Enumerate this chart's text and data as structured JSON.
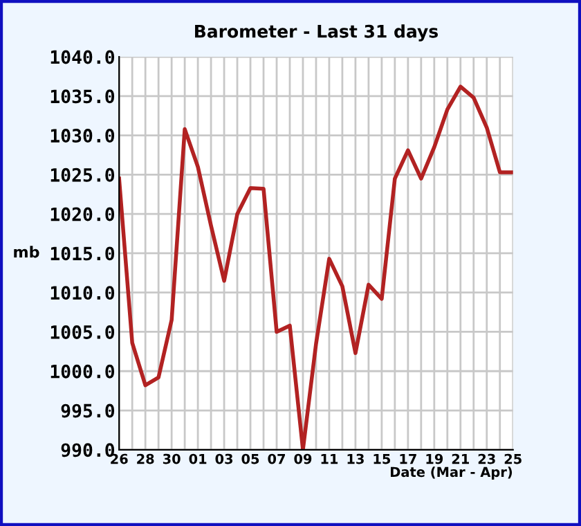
{
  "chart_data": {
    "type": "line",
    "title": "Barometer - Last 31 days",
    "xlabel": "Date (Mar - Apr)",
    "ylabel": "mb",
    "categories": [
      "26",
      null,
      "28",
      null,
      "30",
      null,
      "01",
      null,
      "03",
      null,
      "05",
      null,
      "07",
      null,
      "09",
      null,
      "11",
      null,
      "13",
      null,
      "15",
      null,
      "17",
      null,
      "19",
      null,
      "21",
      null,
      "23",
      null,
      "25"
    ],
    "series": [
      {
        "color": "#b22222",
        "values": [
          1024.5,
          1003.6,
          998.2,
          999.2,
          1006.5,
          1030.8,
          1026,
          1018.5,
          1011.5,
          1020,
          1023.3,
          1023.2,
          1005,
          1005.8,
          990,
          1003.5,
          1014.3,
          1010.8,
          1002.3,
          1011,
          1009.2,
          1024.5,
          1028.1,
          1024.5,
          1028.5,
          1033.3,
          1036.2,
          1034.8,
          1031,
          1025.3,
          1025.3
        ]
      }
    ],
    "ylim": [
      990,
      1040
    ],
    "yticks": [
      {
        "value": 990,
        "label": "990.0"
      },
      {
        "value": 995,
        "label": "995.0"
      },
      {
        "value": 1000,
        "label": "1000.0"
      },
      {
        "value": 1005,
        "label": "1005.0"
      },
      {
        "value": 1010,
        "label": "1010.0"
      },
      {
        "value": 1015,
        "label": "1015.0"
      },
      {
        "value": 1020,
        "label": "1020.0"
      },
      {
        "value": 1025,
        "label": "1025.0"
      },
      {
        "value": 1030,
        "label": "1030.0"
      },
      {
        "value": 1035,
        "label": "1035.0"
      },
      {
        "value": 1040,
        "label": "1040.0"
      }
    ],
    "grid": true,
    "marker": "none",
    "line_style": "solid"
  }
}
